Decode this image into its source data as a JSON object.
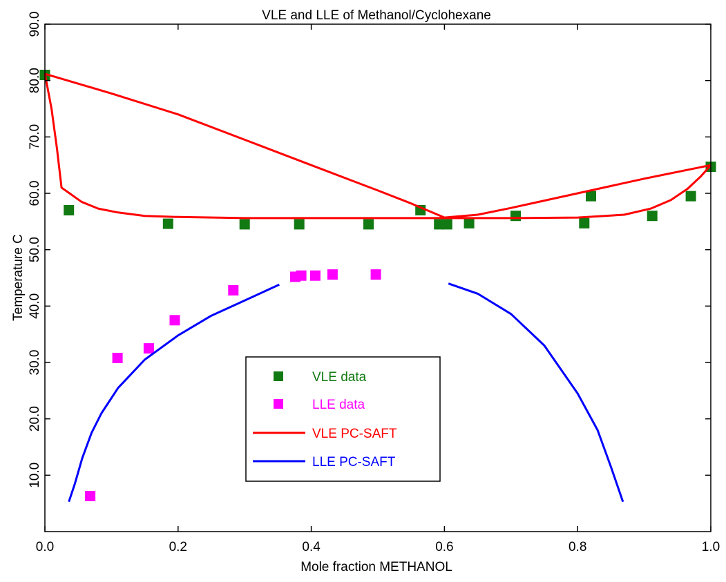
{
  "chart_data": {
    "type": "scatter",
    "title": "VLE and LLE of Methanol/Cyclohexane",
    "xlabel": "Mole fraction METHANOL",
    "ylabel": "Temperature C",
    "xlim": [
      0,
      1
    ],
    "ylim": [
      0,
      90
    ],
    "x_ticks": [
      0.0,
      0.2,
      0.4,
      0.6,
      0.8,
      1.0
    ],
    "x_tick_labels": [
      "0.0",
      "0.2",
      "0.4",
      "0.6",
      "0.8",
      "1.0"
    ],
    "y_ticks": [
      10,
      20,
      30,
      40,
      50,
      60,
      70,
      80,
      90
    ],
    "y_tick_labels": [
      "10.0",
      "20.0",
      "30.0",
      "40.0",
      "50.0",
      "60.0",
      "70.0",
      "80.0",
      "90.0"
    ],
    "grid": false,
    "legend_position": "center",
    "series": [
      {
        "name": "VLE data",
        "kind": "marker",
        "color": "#127a12",
        "points": [
          [
            0.0,
            81.0
          ],
          [
            0.036,
            57.0
          ],
          [
            0.185,
            54.6
          ],
          [
            0.3,
            54.5
          ],
          [
            0.382,
            54.5
          ],
          [
            0.486,
            54.5
          ],
          [
            0.564,
            57.0
          ],
          [
            0.592,
            54.5
          ],
          [
            0.604,
            54.5
          ],
          [
            0.637,
            54.7
          ],
          [
            0.707,
            56.0
          ],
          [
            0.81,
            54.7
          ],
          [
            0.82,
            59.5
          ],
          [
            0.912,
            56.0
          ],
          [
            0.97,
            59.5
          ],
          [
            1.0,
            64.7
          ]
        ]
      },
      {
        "name": "LLE data",
        "kind": "marker",
        "color": "#ff00ff",
        "points": [
          [
            0.068,
            6.3
          ],
          [
            0.109,
            30.8
          ],
          [
            0.156,
            32.5
          ],
          [
            0.195,
            37.5
          ],
          [
            0.283,
            42.8
          ],
          [
            0.376,
            45.2
          ],
          [
            0.385,
            45.4
          ],
          [
            0.406,
            45.4
          ],
          [
            0.432,
            45.6
          ],
          [
            0.497,
            45.6
          ]
        ]
      },
      {
        "name": "VLE PC-SAFT",
        "kind": "line",
        "color": "#ff0000",
        "segments": [
          [
            [
              0.0,
              81.2
            ],
            [
              0.01,
              75.0
            ],
            [
              0.018,
              68.0
            ],
            [
              0.025,
              61.0
            ],
            [
              0.037,
              60.0
            ],
            [
              0.055,
              58.5
            ],
            [
              0.08,
              57.3
            ],
            [
              0.11,
              56.6
            ],
            [
              0.15,
              56.0
            ],
            [
              0.2,
              55.8
            ],
            [
              0.3,
              55.6
            ],
            [
              0.4,
              55.6
            ],
            [
              0.5,
              55.6
            ],
            [
              0.6,
              55.6
            ],
            [
              0.7,
              55.6
            ],
            [
              0.8,
              55.7
            ],
            [
              0.87,
              56.2
            ],
            [
              0.91,
              57.3
            ],
            [
              0.94,
              58.8
            ],
            [
              0.965,
              60.8
            ],
            [
              0.985,
              63.0
            ],
            [
              1.0,
              65.0
            ]
          ],
          [
            [
              0.0,
              81.2
            ],
            [
              0.1,
              77.7
            ],
            [
              0.2,
              74.0
            ],
            [
              0.3,
              69.5
            ],
            [
              0.4,
              65.0
            ],
            [
              0.5,
              60.5
            ],
            [
              0.55,
              58.2
            ],
            [
              0.6,
              55.7
            ],
            [
              0.65,
              56.2
            ],
            [
              0.7,
              57.4
            ],
            [
              0.8,
              60.0
            ],
            [
              0.9,
              62.6
            ],
            [
              1.0,
              65.0
            ]
          ]
        ]
      },
      {
        "name": "LLE PC-SAFT",
        "kind": "line",
        "color": "#0000ff",
        "segments": [
          [
            [
              0.036,
              5.3
            ],
            [
              0.045,
              8.5
            ],
            [
              0.056,
              13.0
            ],
            [
              0.07,
              17.5
            ],
            [
              0.085,
              21.0
            ],
            [
              0.11,
              25.5
            ],
            [
              0.15,
              30.5
            ],
            [
              0.2,
              34.8
            ],
            [
              0.25,
              38.3
            ],
            [
              0.3,
              41.0
            ],
            [
              0.352,
              43.8
            ]
          ],
          [
            [
              0.606,
              44.0
            ],
            [
              0.65,
              42.2
            ],
            [
              0.7,
              38.6
            ],
            [
              0.75,
              33.0
            ],
            [
              0.8,
              24.5
            ],
            [
              0.83,
              18.0
            ],
            [
              0.85,
              11.5
            ],
            [
              0.868,
              5.3
            ]
          ]
        ]
      }
    ]
  }
}
